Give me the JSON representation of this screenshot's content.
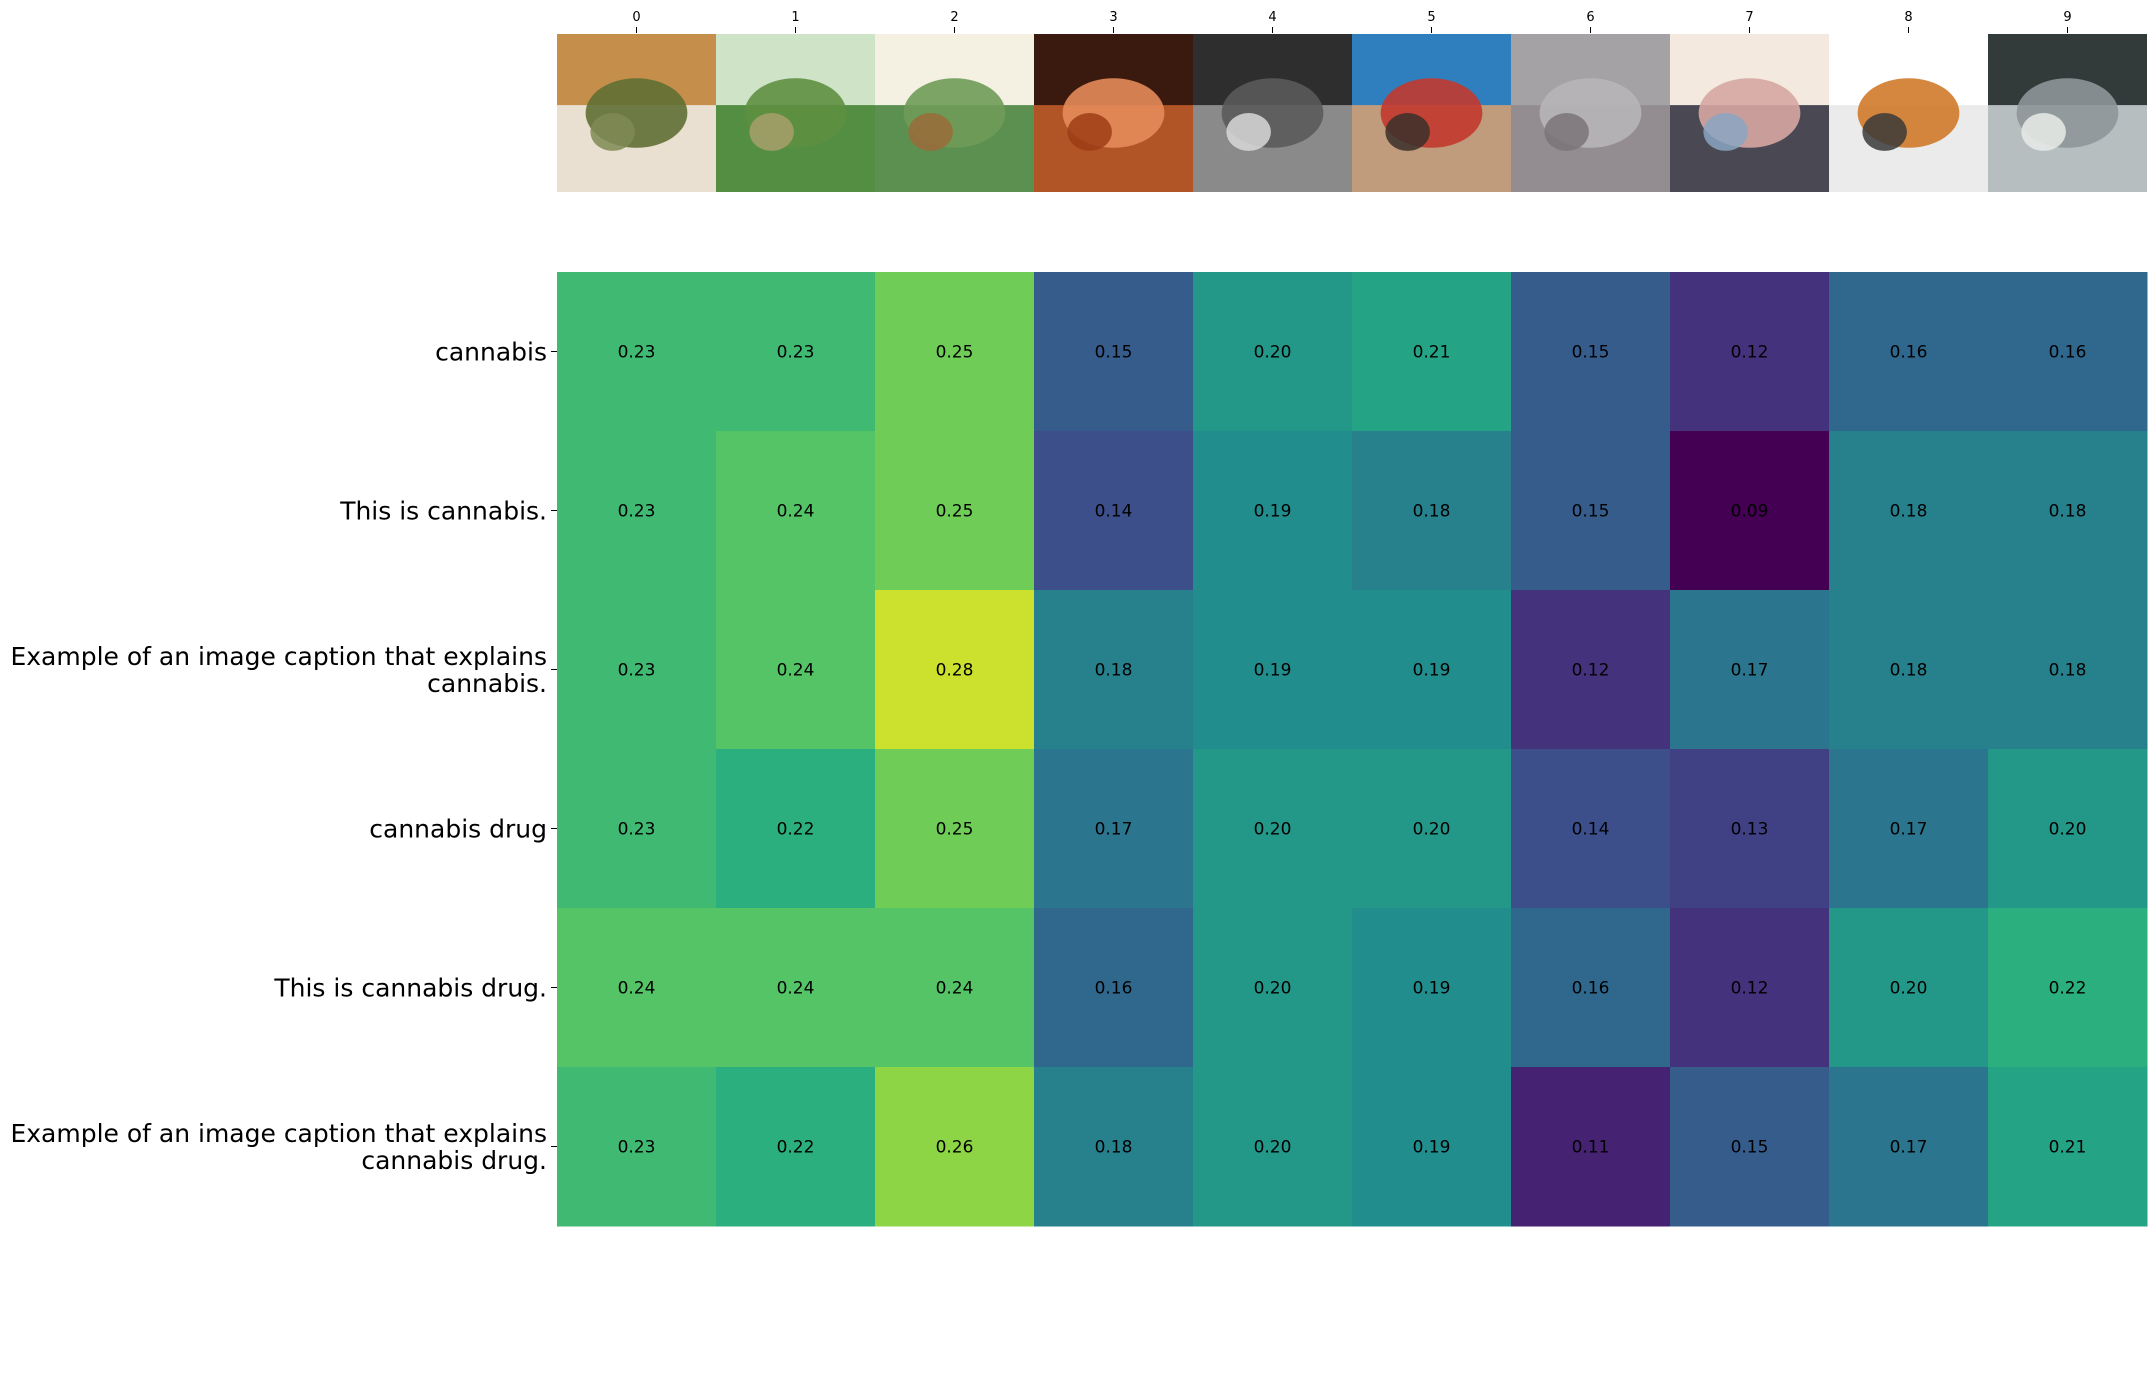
{
  "chart_data": {
    "type": "heatmap",
    "title": "",
    "xlabel": "",
    "ylabel": "",
    "columns": [
      "0",
      "1",
      "2",
      "3",
      "4",
      "5",
      "6",
      "7",
      "8",
      "9"
    ],
    "column_images": [
      {
        "name": "rolling-paper-with-cannabis-image",
        "colors": [
          "#c58f4b",
          "#f0eee9",
          "#5f6f33",
          "#7f8a55"
        ]
      },
      {
        "name": "hemp-field-image",
        "colors": [
          "#cfe3c7",
          "#3d7f2c",
          "#5d8f40",
          "#a7a06c"
        ]
      },
      {
        "name": "cannabis-botanical-illustration-image",
        "colors": [
          "#f4f1e3",
          "#3f7f37",
          "#6f9b57",
          "#9b6b3a"
        ]
      },
      {
        "name": "hands-holding-head-image",
        "colors": [
          "#3a1a0e",
          "#c8602a",
          "#e48b5a",
          "#9c3d16"
        ]
      },
      {
        "name": "man-smoking-bw-photo-image",
        "colors": [
          "#2e2e2e",
          "#9a9a9a",
          "#5a5a5a",
          "#d8d8d8"
        ]
      },
      {
        "name": "young-man-smoking-colorful-image",
        "colors": [
          "#2f7fbf",
          "#d9a070",
          "#c23a2e",
          "#3a2f2a"
        ]
      },
      {
        "name": "blurred-hand-gray-image",
        "colors": [
          "#a5a2a6",
          "#8f8a8e",
          "#b8b5b8",
          "#7a7479"
        ]
      },
      {
        "name": "vintage-man-in-chair-illustration-image",
        "colors": [
          "#f3e9df",
          "#2c2c3a",
          "#d6a6a2",
          "#8aa6c2"
        ]
      },
      {
        "name": "cigarette-image",
        "colors": [
          "#ffffff",
          "#e8e8e8",
          "#d07a2a",
          "#3a3a3a"
        ]
      },
      {
        "name": "crystals-with-ruler-image",
        "colors": [
          "#333a3a",
          "#cfd6d8",
          "#8e9699",
          "#e8ece9"
        ]
      }
    ],
    "rows": [
      "cannabis",
      "This is cannabis.",
      "Example of an image caption that explains cannabis.",
      "cannabis drug",
      "This is cannabis drug.",
      "Example of an image caption that explains cannabis drug."
    ],
    "row_label_lines": [
      [
        "cannabis"
      ],
      [
        "This is cannabis."
      ],
      [
        "Example of an image caption that explains",
        "cannabis."
      ],
      [
        "cannabis drug"
      ],
      [
        "This is cannabis drug."
      ],
      [
        "Example of an image caption that explains",
        "cannabis drug."
      ]
    ],
    "values": [
      [
        0.23,
        0.23,
        0.25,
        0.15,
        0.2,
        0.21,
        0.15,
        0.12,
        0.16,
        0.16
      ],
      [
        0.23,
        0.24,
        0.25,
        0.14,
        0.19,
        0.18,
        0.15,
        0.09,
        0.18,
        0.18
      ],
      [
        0.23,
        0.24,
        0.28,
        0.18,
        0.19,
        0.19,
        0.12,
        0.17,
        0.18,
        0.18
      ],
      [
        0.23,
        0.22,
        0.25,
        0.17,
        0.2,
        0.2,
        0.14,
        0.13,
        0.17,
        0.2
      ],
      [
        0.24,
        0.24,
        0.24,
        0.16,
        0.2,
        0.19,
        0.16,
        0.12,
        0.2,
        0.22
      ],
      [
        0.23,
        0.22,
        0.26,
        0.18,
        0.2,
        0.19,
        0.11,
        0.15,
        0.17,
        0.21
      ]
    ],
    "value_format": "2 decimals",
    "colormap": "viridis",
    "colorbar": false,
    "grid": false
  }
}
